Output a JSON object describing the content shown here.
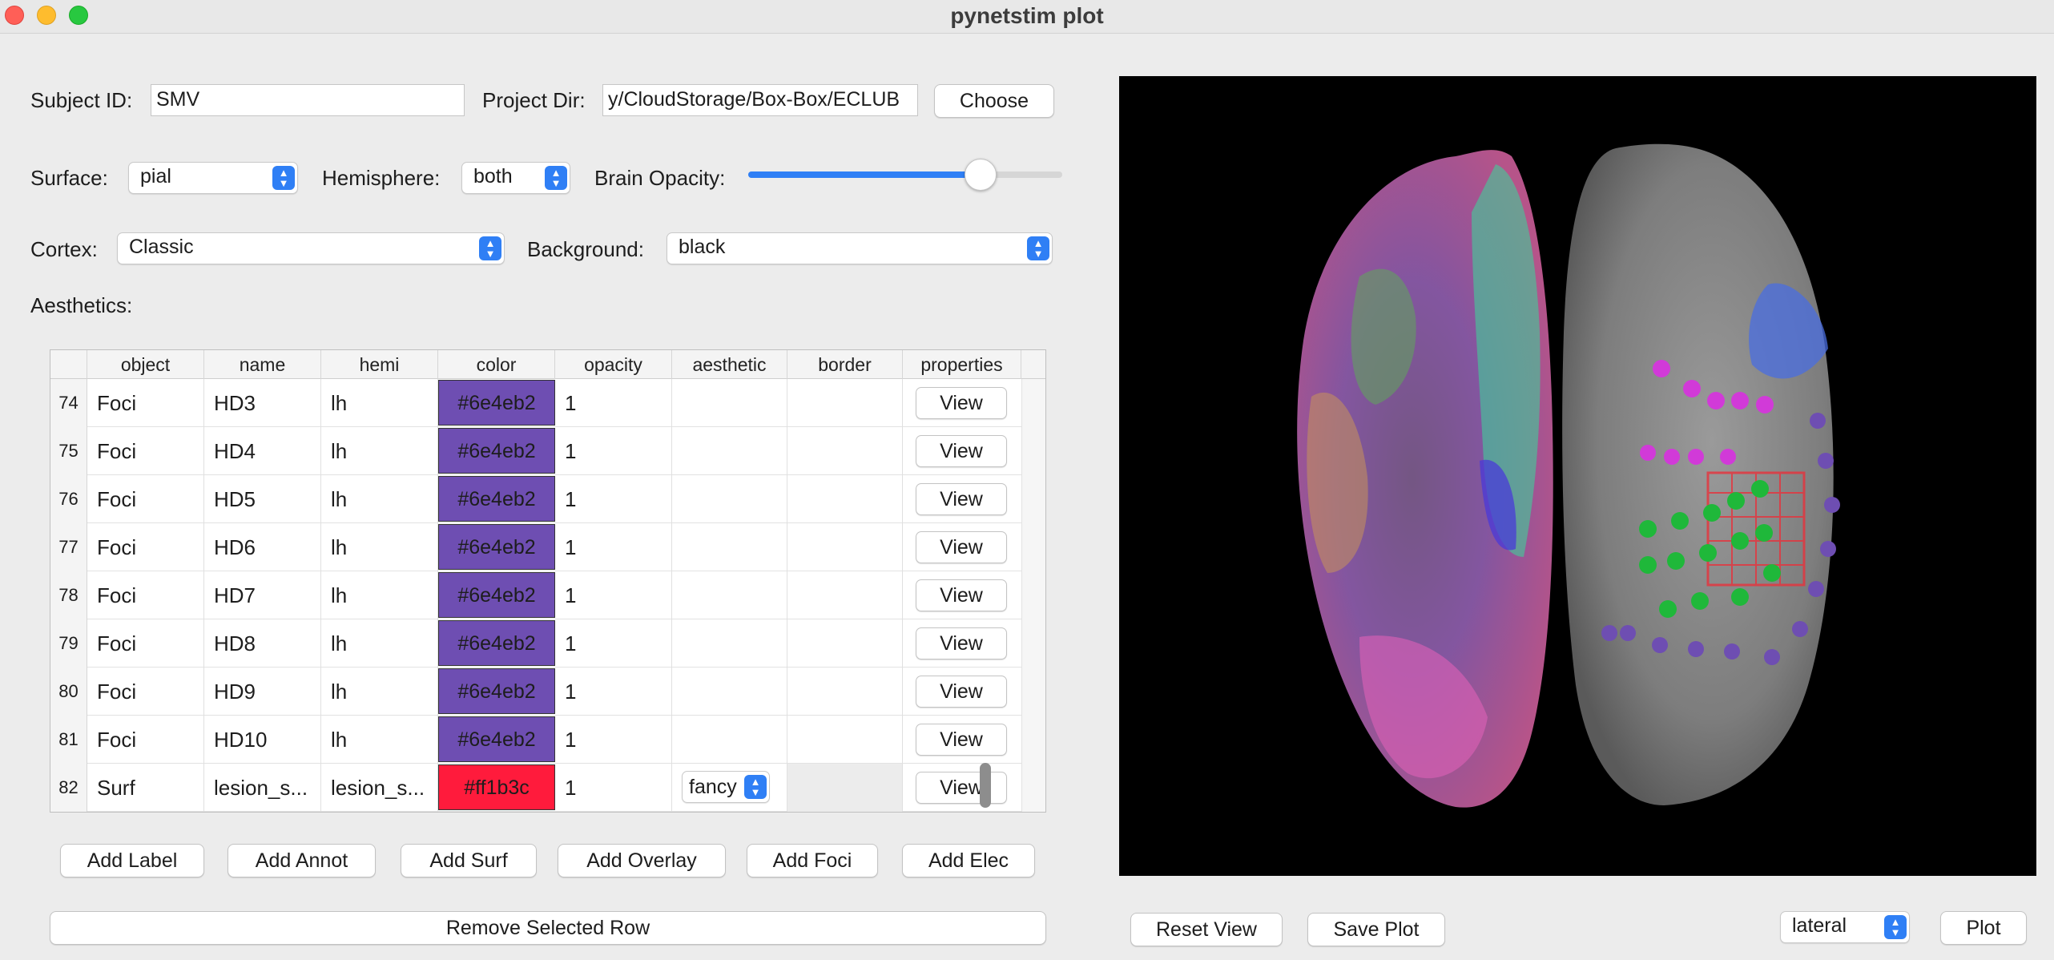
{
  "window": {
    "title": "pynetstim plot"
  },
  "form": {
    "subject_id_label": "Subject ID:",
    "subject_id_value": "SMV",
    "project_dir_label": "Project Dir:",
    "project_dir_value": "y/CloudStorage/Box-Box/ECLUB",
    "choose_label": "Choose",
    "surface_label": "Surface:",
    "surface_value": "pial",
    "hemisphere_label": "Hemisphere:",
    "hemisphere_value": "both",
    "opacity_label": "Brain Opacity:",
    "opacity_value": 0.74,
    "cortex_label": "Cortex:",
    "cortex_value": "Classic",
    "background_label": "Background:",
    "background_value": "black",
    "aesthetics_label": "Aesthetics:"
  },
  "table": {
    "columns": [
      "object",
      "name",
      "hemi",
      "color",
      "opacity",
      "aesthetic",
      "border",
      "properties"
    ],
    "rows": [
      {
        "num": "74",
        "object": "Foci",
        "name": "HD3",
        "hemi": "lh",
        "color": "#6e4eb2",
        "opacity": "1",
        "aesthetic": "",
        "view": "View"
      },
      {
        "num": "75",
        "object": "Foci",
        "name": "HD4",
        "hemi": "lh",
        "color": "#6e4eb2",
        "opacity": "1",
        "aesthetic": "",
        "view": "View"
      },
      {
        "num": "76",
        "object": "Foci",
        "name": "HD5",
        "hemi": "lh",
        "color": "#6e4eb2",
        "opacity": "1",
        "aesthetic": "",
        "view": "View"
      },
      {
        "num": "77",
        "object": "Foci",
        "name": "HD6",
        "hemi": "lh",
        "color": "#6e4eb2",
        "opacity": "1",
        "aesthetic": "",
        "view": "View"
      },
      {
        "num": "78",
        "object": "Foci",
        "name": "HD7",
        "hemi": "lh",
        "color": "#6e4eb2",
        "opacity": "1",
        "aesthetic": "",
        "view": "View"
      },
      {
        "num": "79",
        "object": "Foci",
        "name": "HD8",
        "hemi": "lh",
        "color": "#6e4eb2",
        "opacity": "1",
        "aesthetic": "",
        "view": "View"
      },
      {
        "num": "80",
        "object": "Foci",
        "name": "HD9",
        "hemi": "lh",
        "color": "#6e4eb2",
        "opacity": "1",
        "aesthetic": "",
        "view": "View"
      },
      {
        "num": "81",
        "object": "Foci",
        "name": "HD10",
        "hemi": "lh",
        "color": "#6e4eb2",
        "opacity": "1",
        "aesthetic": "",
        "view": "View"
      },
      {
        "num": "82",
        "object": "Surf",
        "name": "lesion_s...",
        "hemi": "lesion_s...",
        "color": "#ff1b3c",
        "opacity": "1",
        "aesthetic": "fancy",
        "view": "View"
      }
    ]
  },
  "actions": {
    "add_label": "Add Label",
    "add_annot": "Add Annot",
    "add_surf": "Add Surf",
    "add_overlay": "Add Overlay",
    "add_foci": "Add Foci",
    "add_elec": "Add Elec",
    "remove_row": "Remove Selected Row"
  },
  "plot_controls": {
    "reset_view": "Reset View",
    "save_plot": "Save Plot",
    "view_value": "lateral",
    "plot": "Plot"
  },
  "colors": {
    "accent": "#2f7ff5",
    "foci": "#6e4eb2",
    "lesion": "#ff1b3c",
    "canvas_bg": "#000000"
  }
}
